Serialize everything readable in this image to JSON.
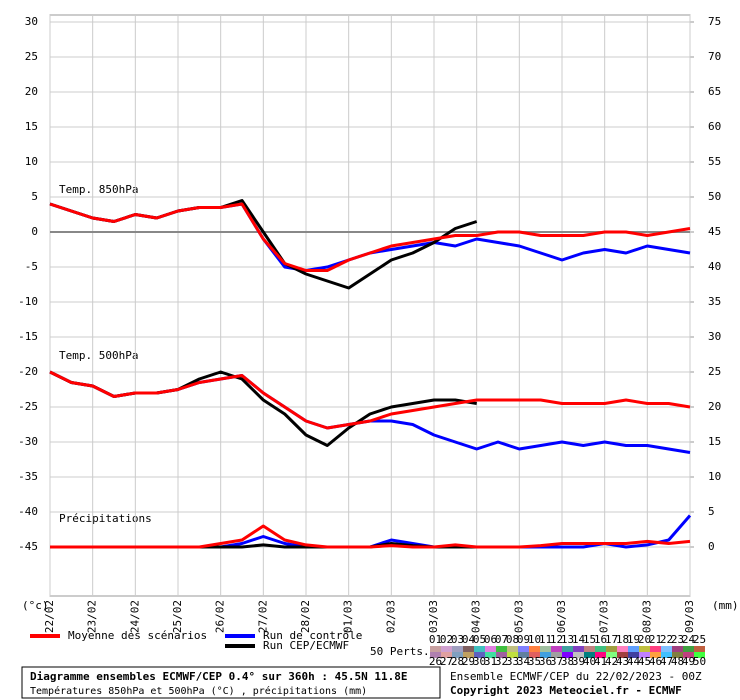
{
  "chart_data": {
    "type": "line",
    "xlim": [
      0,
      15
    ],
    "xticks": [
      {
        "value": 0,
        "label": "22/02"
      },
      {
        "value": 1,
        "label": "23/02"
      },
      {
        "value": 2,
        "label": "24/02"
      },
      {
        "value": 3,
        "label": "25/02"
      },
      {
        "value": 4,
        "label": "26/02"
      },
      {
        "value": 5,
        "label": "27/02"
      },
      {
        "value": 6,
        "label": "28/02"
      },
      {
        "value": 7,
        "label": "01/03"
      },
      {
        "value": 8,
        "label": "02/03"
      },
      {
        "value": 9,
        "label": "03/03"
      },
      {
        "value": 10,
        "label": "04/03"
      },
      {
        "value": 11,
        "label": "05/03"
      },
      {
        "value": 12,
        "label": "06/03"
      },
      {
        "value": 13,
        "label": "07/03"
      },
      {
        "value": 14,
        "label": "08/03"
      },
      {
        "value": 15,
        "label": "09/03"
      }
    ],
    "ylim": [
      -52,
      31
    ],
    "yticks": [
      30,
      25,
      20,
      15,
      10,
      5,
      0,
      -5,
      -10,
      -15,
      -20,
      -25,
      -30,
      -35,
      -40,
      -45
    ],
    "y2lim": [
      -7,
      76
    ],
    "y2ticks": [
      75,
      70,
      65,
      60,
      55,
      50,
      45,
      40,
      35,
      30,
      25,
      20,
      15,
      10,
      5,
      0
    ],
    "y_unit": "(°c)",
    "y2_unit": "(mm)",
    "hline": 0,
    "grid": true,
    "annotations": [
      "Temp. 850hPa",
      "Temp. 500hPa",
      "Précipitations"
    ],
    "x": [
      0,
      0.5,
      1,
      1.5,
      2,
      2.5,
      3,
      3.5,
      4,
      4.5,
      5,
      5.5,
      6,
      6.5,
      7,
      7.5,
      8,
      8.5,
      9,
      9.5,
      10,
      10.5,
      11,
      11.5,
      12,
      12.5,
      13,
      13.5,
      14,
      14.5,
      15
    ],
    "series": [
      {
        "name": "Run de contrôle",
        "color": "#0000ff",
        "values": [
          4,
          3,
          2,
          1.5,
          2.5,
          2,
          3,
          3.5,
          3.5,
          4,
          -1,
          -5,
          -5.5,
          -5,
          -4,
          -3,
          -2.5,
          -2,
          -1.5,
          -2,
          -1,
          -1.5,
          -2,
          -3,
          -4,
          -3,
          -2.5,
          -3,
          -2,
          -2.5,
          -3
        ]
      },
      {
        "name": "Run CEP/ECMWF",
        "color": "#000000",
        "values": [
          4,
          3,
          2,
          1.5,
          2.5,
          2,
          3,
          3.5,
          3.5,
          4.5,
          0,
          -4.5,
          -6,
          -7,
          -8,
          -6,
          -4,
          -3,
          -1.5,
          0.5,
          1.5,
          null,
          null,
          null,
          null,
          null,
          null,
          null,
          null,
          null,
          null
        ]
      },
      {
        "name": "Moyenne des scénarios",
        "color": "#ff0000",
        "values": [
          4,
          3,
          2,
          1.5,
          2.5,
          2,
          3,
          3.5,
          3.5,
          4,
          -1,
          -4.5,
          -5.5,
          -5.5,
          -4,
          -3,
          -2,
          -1.5,
          -1,
          -0.5,
          -0.5,
          0,
          0,
          -0.5,
          -0.5,
          -0.5,
          0,
          0,
          -0.5,
          0,
          0.5
        ]
      },
      {
        "name": "Run de contrôle",
        "color": "#0000ff",
        "values": [
          -20,
          -21.5,
          -22,
          -23.5,
          -23,
          -23,
          -22.5,
          -21.5,
          -21,
          -20.5,
          -23,
          -25,
          -27,
          -28,
          -27.5,
          -27,
          -27,
          -27.5,
          -29,
          -30,
          -31,
          -30,
          -31,
          -30.5,
          -30,
          -30.5,
          -30,
          -30.5,
          -30.5,
          -31,
          -31.5
        ]
      },
      {
        "name": "Run CEP/ECMWF",
        "color": "#000000",
        "values": [
          -20,
          -21.5,
          -22,
          -23.5,
          -23,
          -23,
          -22.5,
          -21,
          -20,
          -21,
          -24,
          -26,
          -29,
          -30.5,
          -28,
          -26,
          -25,
          -24.5,
          -24,
          -24,
          -24.5,
          null,
          null,
          null,
          null,
          null,
          null,
          null,
          null,
          null,
          null
        ]
      },
      {
        "name": "Moyenne des scénarios",
        "color": "#ff0000",
        "values": [
          -20,
          -21.5,
          -22,
          -23.5,
          -23,
          -23,
          -22.5,
          -21.5,
          -21,
          -20.5,
          -23,
          -25,
          -27,
          -28,
          -27.5,
          -27,
          -26,
          -25.5,
          -25,
          -24.5,
          -24,
          -24,
          -24,
          -24,
          -24.5,
          -24.5,
          -24.5,
          -24,
          -24.5,
          -24.5,
          -25
        ]
      },
      {
        "name": "Run de contrôle",
        "color": "#0000ff",
        "axis": "y2",
        "values": [
          0,
          0,
          0,
          0,
          0,
          0,
          0,
          0,
          0,
          0.5,
          1.5,
          0.5,
          0,
          0,
          0,
          0,
          1,
          0.5,
          0,
          0,
          0,
          0,
          0,
          0,
          0,
          0,
          0.5,
          0,
          0.3,
          1,
          4.5
        ]
      },
      {
        "name": "Run CEP/ECMWF",
        "color": "#000000",
        "axis": "y2",
        "values": [
          0,
          0,
          0,
          0,
          0,
          0,
          0,
          0,
          0,
          0,
          0.3,
          0,
          0,
          0,
          0,
          0,
          0.5,
          0.2,
          0,
          0,
          0,
          null,
          null,
          null,
          null,
          null,
          null,
          null,
          null,
          null,
          null
        ]
      },
      {
        "name": "Moyenne des scénarios",
        "color": "#ff0000",
        "axis": "y2",
        "values": [
          0,
          0,
          0,
          0,
          0,
          0,
          0,
          0,
          0.5,
          1,
          3,
          1,
          0.3,
          0,
          0,
          0,
          0.2,
          0,
          0,
          0.3,
          0,
          0,
          0,
          0.2,
          0.5,
          0.5,
          0.5,
          0.5,
          0.8,
          0.5,
          0.8
        ]
      }
    ],
    "perts_label": "50 Perts.",
    "pert_labels": [
      "01",
      "02",
      "03",
      "04",
      "05",
      "06",
      "07",
      "08",
      "09",
      "10",
      "11",
      "12",
      "13",
      "14",
      "15",
      "16",
      "17",
      "18",
      "19",
      "20",
      "21",
      "22",
      "23",
      "24",
      "25",
      "26",
      "27",
      "28",
      "29",
      "30",
      "31",
      "32",
      "33",
      "34",
      "35",
      "36",
      "37",
      "38",
      "39",
      "40",
      "41",
      "42",
      "43",
      "44",
      "45",
      "46",
      "47",
      "48",
      "49",
      "50"
    ],
    "pert_colors": [
      "#c8a0a0",
      "#d0a0d0",
      "#a0a0c0",
      "#806060",
      "#40c0c0",
      "#e080e0",
      "#40c040",
      "#c0c080",
      "#8080ff",
      "#ff8040",
      "#a0c0a0",
      "#c040c0",
      "#40a0a0",
      "#8040c0",
      "#c08080",
      "#40c080",
      "#a0a040",
      "#ff80c0",
      "#60a0ff",
      "#c0c040",
      "#ff4080",
      "#80c0ff",
      "#a04080",
      "#40a040",
      "#c06040",
      "#b080b0",
      "#e0a0a0",
      "#80a0c0",
      "#c0a060",
      "#6060c0",
      "#40e0a0",
      "#a060a0",
      "#c0e040",
      "#6080a0",
      "#e06060",
      "#40a0e0",
      "#a0a0a0",
      "#8000ff",
      "#c0c0c0",
      "#008080",
      "#ff0080",
      "#80ff80",
      "#a04040",
      "#4040a0",
      "#c080ff",
      "#ffa040",
      "#40c0ff",
      "#808040",
      "#c04080",
      "#40ff40"
    ]
  },
  "footer": {
    "left_1": "Diagramme ensembles ECMWF/CEP 0.4° sur 360h : 45.5N 11.8E",
    "left_2": "Températures 850hPa et 500hPa (°C) , précipitations (mm)",
    "right_1": "Ensemble ECMWF/CEP du 22/02/2023 - 00Z",
    "right_2": "Copyright 2023 Meteociel.fr - ECMWF"
  }
}
